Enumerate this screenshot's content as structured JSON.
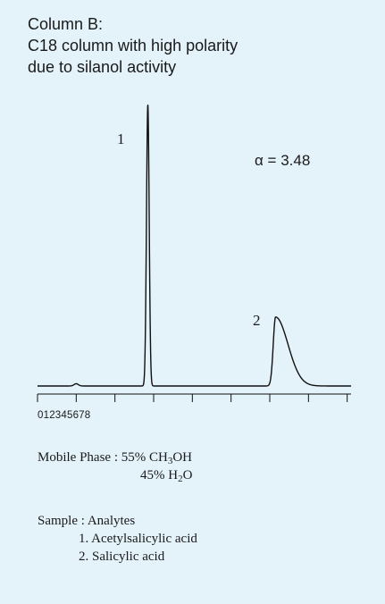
{
  "title_lines": [
    "Column B:",
    "C18 column with high polarity",
    "due to silanol activity"
  ],
  "alpha_label": "α = 3.48",
  "mobile_phase": {
    "label": "Mobile Phase :",
    "line1_prefix": "55% CH",
    "line1_sub": "3",
    "line1_suffix": "OH",
    "line2_prefix": "45% H",
    "line2_sub": "2",
    "line2_suffix": "O"
  },
  "sample": {
    "label": "Sample : Analytes",
    "items": [
      "1. Acetylsalicylic acid",
      "2. Salicylic acid"
    ]
  },
  "chart_data": {
    "type": "line",
    "tick_label_text": "012345678",
    "x_ticks": [
      0,
      1,
      2,
      3,
      4,
      5,
      6,
      7,
      8
    ],
    "xlim": [
      0,
      8.1
    ],
    "ylim": [
      0,
      1
    ],
    "grid": false,
    "peaks": [
      {
        "label": "1",
        "retention": 2.85,
        "height": 1.0
      },
      {
        "label": "2",
        "retention": 6.15,
        "height": 0.245
      }
    ],
    "colors": {
      "background": "#e4f2fa",
      "line": "#111111"
    }
  }
}
